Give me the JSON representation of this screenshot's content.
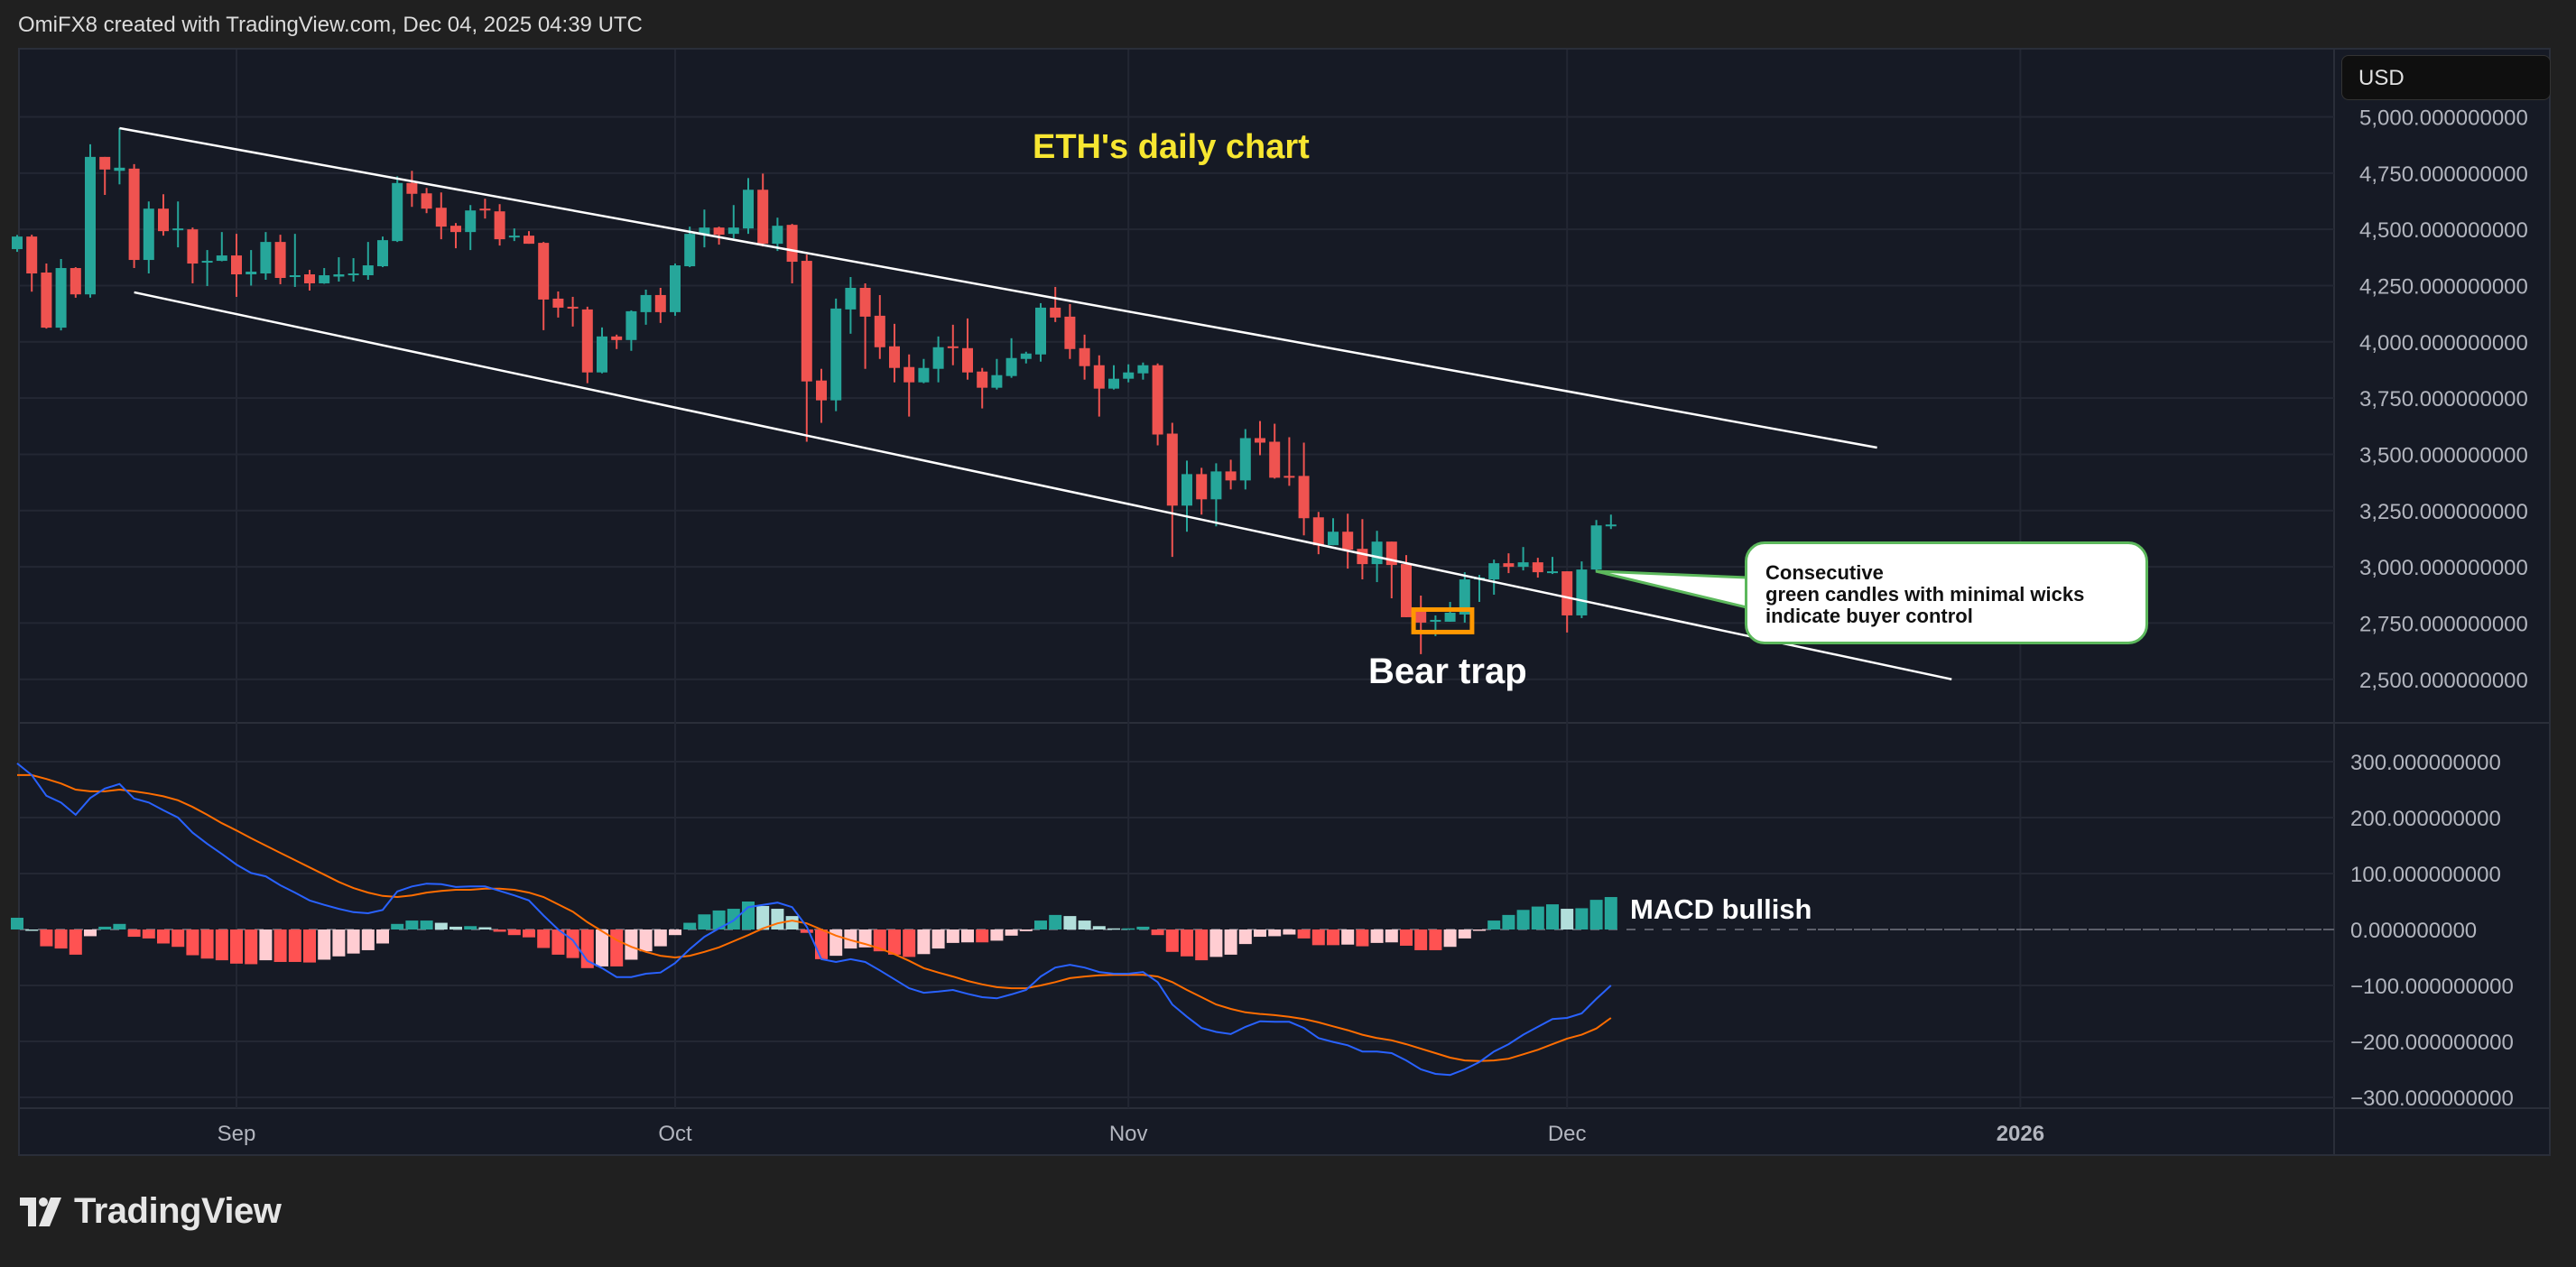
{
  "header": {
    "attribution": "OmiFX8 created with TradingView.com, Dec 04, 2025 04:39 UTC"
  },
  "currency": "USD",
  "annotations": {
    "title": "ETH's daily chart",
    "bear_trap": "Bear trap",
    "macd_bullish": "MACD bullish",
    "callout": "Consecutive\ngreen candles with minimal wicks\nindicate buyer control"
  },
  "logo": {
    "text": "TradingView"
  },
  "colors": {
    "up": "#26a69a",
    "down": "#ef5350",
    "grid": "#232733",
    "background": "#161a25",
    "macd_line": "#2962ff",
    "signal_line": "#ff6d00",
    "hist_up_strong": "#26a69a",
    "hist_up_weak": "#b2dfdb",
    "hist_down_strong": "#ff5252",
    "hist_down_weak": "#ffcdd2",
    "title": "#f7e631",
    "bear_box": "#ff9800",
    "callout_border": "#5cb85c",
    "trendline": "#ffffff"
  },
  "chart_data": [
    {
      "type": "candlestick",
      "title": "ETH's daily chart",
      "ylabel": "USD",
      "ylim": [
        2350,
        5070
      ],
      "y_ticks": [
        "5,000.000000000",
        "4,750.000000000",
        "4,500.000000000",
        "4,250.000000000",
        "4,000.000000000",
        "3,750.000000000",
        "3,500.000000000",
        "3,250.000000000",
        "3,000.000000000",
        "2,750.000000000",
        "2,500.000000000"
      ],
      "y_tick_values": [
        5000,
        4750,
        4500,
        4250,
        4000,
        3750,
        3500,
        3250,
        3000,
        2750,
        2500
      ],
      "x_ticks": [
        {
          "label": "Sep",
          "day": 0
        },
        {
          "label": "Oct",
          "day": 30
        },
        {
          "label": "Nov",
          "day": 61
        },
        {
          "label": "Dec",
          "day": 91
        },
        {
          "label": "2026",
          "day": 122
        }
      ],
      "x_start_day": -15,
      "dates_note": "day index relative to Sep 1, 2025",
      "ohlc": [
        [
          4412,
          4475,
          4400,
          4468
        ],
        [
          4468,
          4476,
          4223,
          4304
        ],
        [
          4308,
          4348,
          4059,
          4063
        ],
        [
          4063,
          4368,
          4051,
          4328
        ],
        [
          4328,
          4332,
          4196,
          4211
        ],
        [
          4211,
          4878,
          4196,
          4822
        ],
        [
          4822,
          4822,
          4653,
          4766
        ],
        [
          4760,
          4950,
          4700,
          4774
        ],
        [
          4770,
          4790,
          4328,
          4364
        ],
        [
          4364,
          4624,
          4304,
          4592
        ],
        [
          4592,
          4656,
          4472,
          4492
        ],
        [
          4496,
          4624,
          4420,
          4504
        ],
        [
          4500,
          4508,
          4260,
          4348
        ],
        [
          4352,
          4408,
          4248,
          4360
        ],
        [
          4360,
          4488,
          4358,
          4384
        ],
        [
          4384,
          4480,
          4200,
          4300
        ],
        [
          4300,
          4408,
          4250,
          4312
        ],
        [
          4304,
          4488,
          4276,
          4444
        ],
        [
          4444,
          4476,
          4256,
          4284
        ],
        [
          4288,
          4480,
          4244,
          4296
        ],
        [
          4300,
          4320,
          4228,
          4260
        ],
        [
          4260,
          4328,
          4258,
          4296
        ],
        [
          4290,
          4376,
          4268,
          4300
        ],
        [
          4296,
          4372,
          4268,
          4304
        ],
        [
          4296,
          4444,
          4276,
          4340
        ],
        [
          4336,
          4468,
          4332,
          4452
        ],
        [
          4448,
          4736,
          4444,
          4706
        ],
        [
          4706,
          4760,
          4600,
          4658
        ],
        [
          4660,
          4684,
          4572,
          4592
        ],
        [
          4596,
          4664,
          4456,
          4512
        ],
        [
          4516,
          4528,
          4416,
          4488
        ],
        [
          4488,
          4608,
          4408,
          4584
        ],
        [
          4592,
          4636,
          4548,
          4584
        ],
        [
          4580,
          4612,
          4428,
          4456
        ],
        [
          4464,
          4504,
          4448,
          4472
        ],
        [
          4472,
          4492,
          4436,
          4436
        ],
        [
          4440,
          4444,
          4052,
          4188
        ],
        [
          4192,
          4224,
          4108,
          4152
        ],
        [
          4156,
          4200,
          4068,
          4148
        ],
        [
          4144,
          4156,
          3816,
          3864
        ],
        [
          3864,
          4064,
          3860,
          4024
        ],
        [
          4024,
          4032,
          3968,
          4008
        ],
        [
          4008,
          4140,
          3960,
          4136
        ],
        [
          4132,
          4232,
          4076,
          4208
        ],
        [
          4208,
          4240,
          4084,
          4132
        ],
        [
          4132,
          4348,
          4116,
          4340
        ],
        [
          4336,
          4512,
          4332,
          4480
        ],
        [
          4476,
          4588,
          4420,
          4508
        ],
        [
          4508,
          4512,
          4432,
          4476
        ],
        [
          4480,
          4608,
          4460,
          4508
        ],
        [
          4504,
          4728,
          4480,
          4676
        ],
        [
          4676,
          4748,
          4424,
          4436
        ],
        [
          4436,
          4552,
          4404,
          4516
        ],
        [
          4520,
          4524,
          4260,
          4356
        ],
        [
          4360,
          4388,
          3556,
          3824
        ],
        [
          3828,
          3880,
          3640,
          3740
        ],
        [
          3740,
          4192,
          3692,
          4148
        ],
        [
          4144,
          4288,
          4036,
          4240
        ],
        [
          4240,
          4260,
          3880,
          4112
        ],
        [
          4116,
          4208,
          3924,
          3976
        ],
        [
          3980,
          4080,
          3820,
          3884
        ],
        [
          3888,
          3944,
          3668,
          3820
        ],
        [
          3820,
          3924,
          3816,
          3884
        ],
        [
          3880,
          4024,
          3820,
          3976
        ],
        [
          3980,
          4076,
          3896,
          3972
        ],
        [
          3972,
          4104,
          3832,
          3864
        ],
        [
          3868,
          3884,
          3704,
          3796
        ],
        [
          3796,
          3924,
          3788,
          3852
        ],
        [
          3848,
          4016,
          3840,
          3928
        ],
        [
          3924,
          3956,
          3904,
          3948
        ],
        [
          3944,
          4172,
          3912,
          4152
        ],
        [
          4152,
          4244,
          4088,
          4108
        ],
        [
          4112,
          4168,
          3924,
          3968
        ],
        [
          3972,
          4032,
          3832,
          3892
        ],
        [
          3896,
          3940,
          3668,
          3792
        ],
        [
          3792,
          3896,
          3788,
          3836
        ],
        [
          3836,
          3900,
          3820,
          3864
        ],
        [
          3860,
          3908,
          3832,
          3896
        ],
        [
          3896,
          3904,
          3540,
          3588
        ],
        [
          3592,
          3640,
          3044,
          3272
        ],
        [
          3272,
          3472,
          3156,
          3412
        ],
        [
          3412,
          3440,
          3232,
          3300
        ],
        [
          3300,
          3460,
          3180,
          3424
        ],
        [
          3424,
          3476,
          3344,
          3384
        ],
        [
          3384,
          3612,
          3344,
          3572
        ],
        [
          3572,
          3648,
          3496,
          3552
        ],
        [
          3556,
          3636,
          3392,
          3396
        ],
        [
          3404,
          3576,
          3360,
          3396
        ],
        [
          3404,
          3552,
          3140,
          3216
        ],
        [
          3220,
          3244,
          3056,
          3096
        ],
        [
          3096,
          3216,
          3096,
          3156
        ],
        [
          3156,
          3236,
          2992,
          3076
        ],
        [
          3080,
          3212,
          2944,
          3012
        ],
        [
          3012,
          3160,
          2932,
          3112
        ],
        [
          3112,
          3112,
          2860,
          3008
        ],
        [
          3012,
          3052,
          2776,
          2776
        ],
        [
          2820,
          2872,
          2612,
          2752
        ],
        [
          2756,
          2784,
          2692,
          2764
        ],
        [
          2756,
          2844,
          2756,
          2796
        ],
        [
          2788,
          2976,
          2752,
          2944
        ],
        [
          2944,
          2964,
          2844,
          2952
        ],
        [
          2944,
          3032,
          2876,
          3016
        ],
        [
          3016,
          3060,
          2972,
          3000
        ],
        [
          3000,
          3088,
          2984,
          3020
        ],
        [
          3020,
          3040,
          2952,
          2976
        ],
        [
          2976,
          3044,
          2968,
          2980
        ],
        [
          2980,
          2980,
          2708,
          2784
        ],
        [
          2784,
          3024,
          2772,
          2988
        ],
        [
          2988,
          3208,
          2980,
          3184
        ],
        [
          3180,
          3232,
          3168,
          3188
        ]
      ],
      "trendlines": [
        {
          "name": "upper-channel",
          "from": {
            "day": -8,
            "price": 4950
          },
          "to": {
            "day": 112.2,
            "price": 3530
          }
        },
        {
          "name": "lower-channel",
          "from": {
            "day": -7,
            "price": 4220
          },
          "to": {
            "day": 117.3,
            "price": 2500
          }
        }
      ],
      "bear_trap_box": {
        "from_day": 80.5,
        "to_day": 84.5,
        "price_top": 2810,
        "price_bottom": 2710
      }
    },
    {
      "type": "macd",
      "ylim": [
        -340,
        355
      ],
      "y_ticks": [
        "300.000000000",
        "200.000000000",
        "100.000000000",
        "0.000000000",
        "−100.000000000",
        "−200.000000000",
        "−300.000000000"
      ],
      "y_tick_values": [
        300,
        200,
        100,
        0,
        -100,
        -200,
        -300
      ],
      "macd": [
        297,
        276,
        239,
        227,
        205,
        235,
        252,
        260,
        234,
        227,
        213,
        200,
        173,
        153,
        135,
        116,
        101,
        95,
        79,
        66,
        52,
        44,
        37,
        31,
        29,
        35,
        68,
        77,
        82,
        81,
        76,
        77,
        77,
        69,
        61,
        52,
        25,
        0,
        -19,
        -56,
        -69,
        -85,
        -85,
        -79,
        -77,
        -60,
        -35,
        -13,
        2,
        16,
        40,
        44,
        48,
        40,
        5,
        -53,
        -58,
        -53,
        -58,
        -73,
        -89,
        -105,
        -113,
        -111,
        -108,
        -115,
        -121,
        -123,
        -116,
        -108,
        -84,
        -68,
        -63,
        -68,
        -76,
        -79,
        -79,
        -76,
        -94,
        -134,
        -156,
        -176,
        -183,
        -187,
        -174,
        -164,
        -165,
        -165,
        -176,
        -194,
        -201,
        -207,
        -218,
        -218,
        -221,
        -234,
        -250,
        -258,
        -260,
        -250,
        -237,
        -218,
        -205,
        -188,
        -174,
        -160,
        -158,
        -150,
        -124,
        -100
      ],
      "signal": [
        276,
        276,
        269,
        261,
        250,
        247,
        247,
        250,
        247,
        243,
        238,
        231,
        219,
        205,
        190,
        177,
        163,
        150,
        137,
        124,
        111,
        98,
        85,
        74,
        66,
        60,
        58,
        61,
        66,
        69,
        71,
        71,
        73,
        73,
        71,
        66,
        58,
        45,
        32,
        13,
        -3,
        -19,
        -31,
        -40,
        -47,
        -50,
        -47,
        -40,
        -32,
        -21,
        -10,
        2,
        11,
        16,
        11,
        0,
        -11,
        -19,
        -26,
        -34,
        -44,
        -56,
        -69,
        -77,
        -84,
        -92,
        -98,
        -103,
        -105,
        -105,
        -100,
        -94,
        -87,
        -84,
        -82,
        -81,
        -81,
        -81,
        -84,
        -94,
        -108,
        -121,
        -134,
        -142,
        -148,
        -151,
        -153,
        -156,
        -160,
        -166,
        -173,
        -180,
        -188,
        -194,
        -198,
        -205,
        -213,
        -221,
        -229,
        -234,
        -235,
        -234,
        -231,
        -223,
        -215,
        -205,
        -195,
        -188,
        -177,
        -158
      ]
    }
  ]
}
